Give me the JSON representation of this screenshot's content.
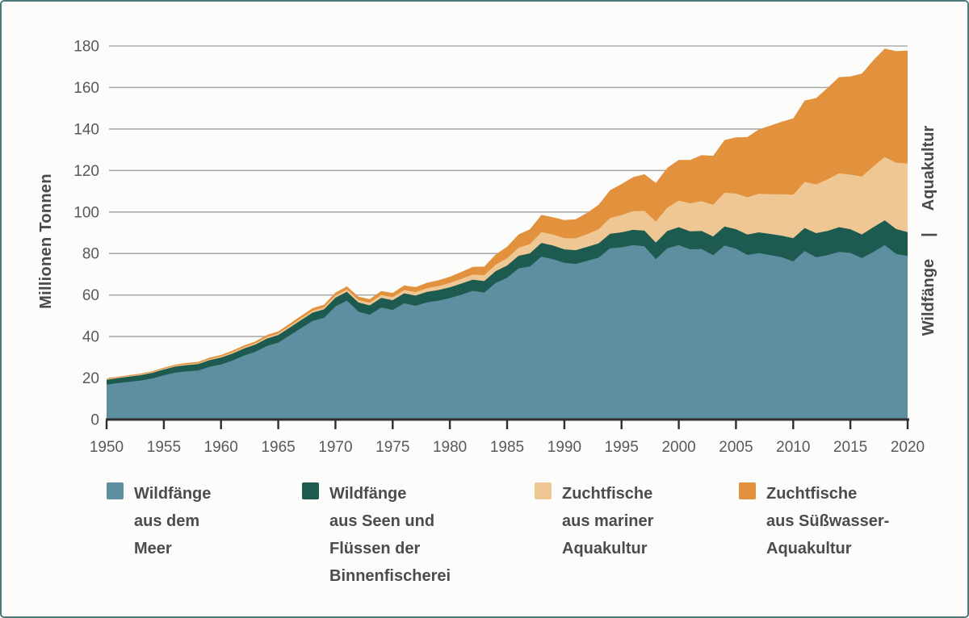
{
  "frame": {
    "background": "#fcfcfa",
    "border_color": "#4e7b79"
  },
  "chart_data": {
    "type": "area",
    "stacked": true,
    "title": "",
    "xlabel": "",
    "ylabel": "Millionen Tonnen",
    "xlim": [
      1950,
      2020
    ],
    "ylim": [
      0,
      180
    ],
    "x_ticks": [
      1950,
      1955,
      1960,
      1965,
      1970,
      1975,
      1980,
      1985,
      1990,
      1995,
      2000,
      2005,
      2010,
      2015,
      2020
    ],
    "y_ticks": [
      0,
      20,
      40,
      60,
      80,
      100,
      120,
      140,
      160,
      180
    ],
    "grid": "horizontal",
    "legend_position": "bottom",
    "axis_color": "#2e2e2e",
    "grid_color": "#ababab",
    "tick_label_color": "#58595b",
    "x": [
      1950,
      1951,
      1952,
      1953,
      1954,
      1955,
      1956,
      1957,
      1958,
      1959,
      1960,
      1961,
      1962,
      1963,
      1964,
      1965,
      1966,
      1967,
      1968,
      1969,
      1970,
      1971,
      1972,
      1973,
      1974,
      1975,
      1976,
      1977,
      1978,
      1979,
      1980,
      1981,
      1982,
      1983,
      1984,
      1985,
      1986,
      1987,
      1988,
      1989,
      1990,
      1991,
      1992,
      1993,
      1994,
      1995,
      1996,
      1997,
      1998,
      1999,
      2000,
      2001,
      2002,
      2003,
      2004,
      2005,
      2006,
      2007,
      2008,
      2009,
      2010,
      2011,
      2012,
      2013,
      2014,
      2015,
      2016,
      2017,
      2018,
      2019,
      2020
    ],
    "series": [
      {
        "name": "Wildfänge aus dem Meer",
        "color": "#5e8fa0",
        "values": [
          16.8,
          17.6,
          18.2,
          18.8,
          19.8,
          21.3,
          22.6,
          23.2,
          23.6,
          25.4,
          26.5,
          28.4,
          30.8,
          32.6,
          35.4,
          37.0,
          40.5,
          44.0,
          47.5,
          49.0,
          54.5,
          57.3,
          52.0,
          50.5,
          54.0,
          52.8,
          56.0,
          54.8,
          56.5,
          57.3,
          58.5,
          60.2,
          62.0,
          61.2,
          65.8,
          68.3,
          72.8,
          73.8,
          78.5,
          77.3,
          75.5,
          75.0,
          76.5,
          78.0,
          82.5,
          83.0,
          84.0,
          83.5,
          77.2,
          82.5,
          84.0,
          82.0,
          82.2,
          79.2,
          83.8,
          82.3,
          79.3,
          80.2,
          79.2,
          78.2,
          76.2,
          81.2,
          78.2,
          79.2,
          80.8,
          80.3,
          77.8,
          80.8,
          84.0,
          79.8,
          78.8
        ]
      },
      {
        "name": "Wildfänge aus Seen und Flüssen der Binnenfischerei",
        "color": "#1d5b50",
        "values": [
          2.3,
          2.4,
          2.5,
          2.6,
          2.7,
          2.8,
          2.9,
          3.0,
          3.1,
          3.2,
          3.3,
          3.4,
          3.4,
          3.5,
          3.6,
          3.7,
          3.8,
          3.9,
          4.0,
          4.1,
          4.2,
          4.3,
          4.4,
          4.5,
          4.6,
          4.7,
          4.8,
          4.9,
          5.0,
          5.1,
          5.2,
          5.3,
          5.4,
          5.5,
          5.7,
          5.9,
          6.1,
          6.3,
          6.6,
          6.6,
          6.5,
          6.6,
          6.7,
          6.9,
          7.0,
          7.2,
          7.4,
          7.5,
          8.0,
          8.4,
          8.7,
          8.7,
          8.7,
          9.0,
          9.2,
          9.4,
          9.8,
          10.0,
          10.2,
          10.4,
          11.2,
          11.1,
          11.6,
          11.7,
          11.9,
          11.4,
          11.4,
          11.9,
          12.0,
          12.0,
          11.5
        ]
      },
      {
        "name": "Zuchtfische aus mariner Aquakultur",
        "color": "#efc795",
        "values": [
          0.3,
          0.3,
          0.3,
          0.35,
          0.35,
          0.4,
          0.4,
          0.45,
          0.45,
          0.5,
          0.55,
          0.6,
          0.6,
          0.65,
          0.7,
          0.75,
          0.8,
          0.85,
          0.9,
          0.95,
          1.0,
          1.1,
          1.2,
          1.3,
          1.4,
          1.5,
          1.6,
          1.7,
          1.8,
          1.9,
          2.1,
          2.3,
          2.5,
          2.8,
          3.1,
          3.5,
          3.9,
          4.4,
          5.2,
          5.2,
          5.4,
          5.7,
          6.1,
          6.8,
          7.6,
          8.3,
          9.0,
          9.6,
          10.2,
          11.2,
          12.8,
          13.5,
          14.3,
          15.3,
          16.3,
          17.2,
          18.0,
          18.6,
          19.2,
          20.0,
          20.9,
          22.2,
          23.5,
          24.8,
          25.9,
          26.3,
          27.9,
          29.2,
          30.5,
          31.9,
          33.1
        ]
      },
      {
        "name": "Zuchtfische aus Süßwasser-Aquakultur",
        "color": "#e2923c",
        "values": [
          0.3,
          0.35,
          0.4,
          0.4,
          0.45,
          0.5,
          0.55,
          0.6,
          0.65,
          0.7,
          0.75,
          0.8,
          0.85,
          0.9,
          1.0,
          1.05,
          1.1,
          1.2,
          1.25,
          1.3,
          1.4,
          1.5,
          1.6,
          1.7,
          1.9,
          2.0,
          2.2,
          2.4,
          2.6,
          2.8,
          3.0,
          3.3,
          3.7,
          4.2,
          4.9,
          5.6,
          6.4,
          7.2,
          8.3,
          8.4,
          8.7,
          9.2,
          10.3,
          11.8,
          13.4,
          15.0,
          16.4,
          17.6,
          18.6,
          19.2,
          19.6,
          20.9,
          22.2,
          23.6,
          25.4,
          27.1,
          29.0,
          31.0,
          33.0,
          34.9,
          36.8,
          39.2,
          41.6,
          44.1,
          46.4,
          47.3,
          49.6,
          51.2,
          52.2,
          53.8,
          54.4
        ]
      }
    ]
  },
  "legend": {
    "items": [
      {
        "label": "Wildfänge\naus dem\nMeer",
        "color": "#5e8fa0"
      },
      {
        "label": "Wildfänge\naus Seen und\nFlüssen der\nBinnenfischerei",
        "color": "#1d5b50"
      },
      {
        "label": "Zuchtfische\naus mariner\nAquakultur",
        "color": "#efc795"
      },
      {
        "label": "Zuchtfische\naus Süßwasser-\nAquakultur",
        "color": "#e2923c"
      }
    ]
  },
  "right_annotation": {
    "bottom": "Wildfänge",
    "separator": "|",
    "top": "Aquakultur"
  }
}
